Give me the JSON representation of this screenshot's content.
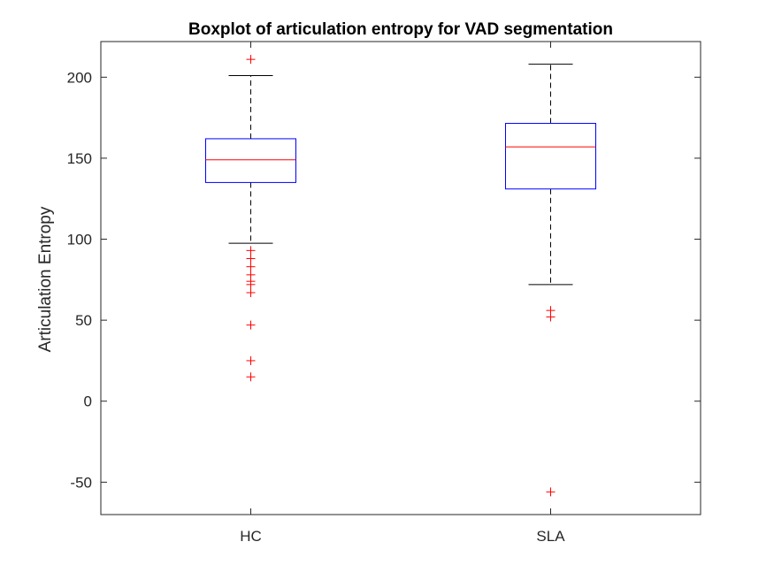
{
  "chart_data": {
    "type": "boxplot",
    "title": "Boxplot of articulation entropy for VAD segmentation",
    "xlabel": "",
    "ylabel": "Articulation Entropy",
    "categories": [
      "HC",
      "SLA"
    ],
    "ylim": [
      -70,
      222
    ],
    "yticks": [
      -50,
      0,
      50,
      100,
      150,
      200
    ],
    "ytick_labels": [
      "-50",
      "0",
      "50",
      "100",
      "150",
      "200"
    ],
    "grid": false,
    "boxes": [
      {
        "category": "HC",
        "q1": 135,
        "median": 149,
        "q3": 162,
        "whisker_low": 97.5,
        "whisker_high": 201,
        "outliers": [
          211,
          93,
          88,
          83,
          78,
          74,
          72,
          67,
          47,
          25,
          15
        ]
      },
      {
        "category": "SLA",
        "q1": 131,
        "median": 157,
        "q3": 171.5,
        "whisker_low": 72,
        "whisker_high": 208,
        "outliers": [
          56,
          52,
          -56
        ]
      }
    ],
    "colors": {
      "box": "#0000ff",
      "median": "#ff0000",
      "whisker": "#000000",
      "outlier": "#ff0000",
      "axis": "#262626"
    }
  }
}
